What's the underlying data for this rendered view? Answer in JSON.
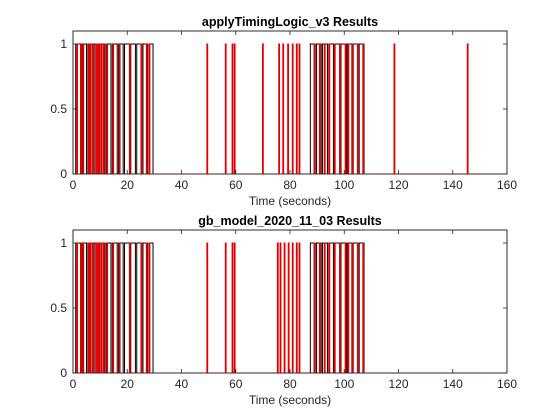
{
  "chart_data": [
    {
      "type": "line",
      "title": "applyTimingLogic_v3 Results",
      "xlabel": "Time (seconds)",
      "ylabel": "",
      "xlim": [
        0,
        160
      ],
      "ylim": [
        0,
        1.1
      ],
      "xticks": [
        0,
        20,
        40,
        60,
        80,
        100,
        120,
        140,
        160
      ],
      "yticks": [
        0,
        0.5,
        1
      ],
      "ytick_labels": [
        "0",
        "0.5",
        "1"
      ],
      "grid": false,
      "legend": false,
      "series": [
        {
          "color": "#000000",
          "style": "pulses",
          "x_end": 152,
          "pulses": [
            [
              1.0,
              2.8
            ],
            [
              3.3,
              5.0
            ],
            [
              5.5,
              7.3
            ],
            [
              7.8,
              9.5
            ],
            [
              10.0,
              11.8
            ],
            [
              12.3,
              14.0
            ],
            [
              14.5,
              16.3
            ],
            [
              16.8,
              18.5
            ],
            [
              19.0,
              20.8
            ],
            [
              21.3,
              23.0
            ],
            [
              23.5,
              25.3
            ],
            [
              25.8,
              27.5
            ],
            [
              28.0,
              29.5
            ],
            [
              87.5,
              89.3
            ],
            [
              89.8,
              91.5
            ],
            [
              92.0,
              93.8
            ],
            [
              94.3,
              96.0
            ],
            [
              96.5,
              98.3
            ],
            [
              98.8,
              100.5
            ],
            [
              101.0,
              102.8
            ],
            [
              103.3,
              105.0
            ],
            [
              105.5,
              107.3
            ]
          ]
        },
        {
          "color": "#e00000",
          "style": "spikes",
          "x_end": 152,
          "spikes": [
            1.5,
            3.0,
            3.8,
            5.8,
            6.4,
            7.2,
            8.5,
            9.2,
            9.8,
            10.6,
            11.4,
            12.6,
            14.8,
            17.2,
            21.0,
            25.2,
            27.2,
            28.2,
            49.5,
            56.3,
            58.8,
            59.6,
            70.0,
            76.0,
            77.5,
            79.3,
            81.0,
            82.5,
            83.5,
            89.0,
            91.0,
            92.8,
            94.5,
            96.5,
            98.5,
            100.5,
            101.5,
            103.0,
            105.0,
            107.0,
            118.5,
            145.5
          ]
        }
      ]
    },
    {
      "type": "line",
      "title": "gb_model_2020_11_03 Results",
      "xlabel": "Time (seconds)",
      "ylabel": "",
      "xlim": [
        0,
        160
      ],
      "ylim": [
        0,
        1.1
      ],
      "xticks": [
        0,
        20,
        40,
        60,
        80,
        100,
        120,
        140,
        160
      ],
      "yticks": [
        0,
        0.5,
        1
      ],
      "ytick_labels": [
        "0",
        "0.5",
        "1"
      ],
      "grid": false,
      "legend": false,
      "series": [
        {
          "color": "#000000",
          "style": "pulses",
          "x_end": 152,
          "pulses": [
            [
              1.0,
              2.8
            ],
            [
              3.3,
              5.0
            ],
            [
              5.5,
              7.3
            ],
            [
              7.8,
              9.5
            ],
            [
              10.0,
              11.8
            ],
            [
              12.3,
              14.0
            ],
            [
              14.5,
              16.3
            ],
            [
              16.8,
              18.5
            ],
            [
              19.0,
              20.8
            ],
            [
              21.3,
              23.0
            ],
            [
              23.5,
              25.3
            ],
            [
              25.8,
              27.5
            ],
            [
              28.0,
              29.5
            ],
            [
              87.5,
              89.3
            ],
            [
              89.8,
              91.5
            ],
            [
              92.0,
              93.8
            ],
            [
              94.3,
              96.0
            ],
            [
              96.5,
              98.3
            ],
            [
              98.8,
              100.5
            ],
            [
              101.0,
              102.8
            ],
            [
              103.3,
              105.0
            ],
            [
              105.5,
              107.3
            ]
          ]
        },
        {
          "color": "#e00000",
          "style": "spikes",
          "x_end": 152,
          "spikes": [
            1.5,
            3.0,
            3.8,
            5.8,
            6.4,
            7.2,
            8.5,
            9.2,
            9.8,
            10.6,
            11.4,
            12.6,
            14.8,
            17.2,
            21.0,
            25.2,
            27.2,
            28.2,
            49.5,
            56.3,
            58.8,
            59.6,
            75.5,
            76.5,
            78.0,
            79.5,
            81.0,
            82.5,
            83.5,
            89.0,
            91.0,
            92.8,
            94.5,
            96.5,
            98.5,
            100.5,
            101.5,
            103.0,
            105.0,
            107.0
          ]
        }
      ]
    }
  ]
}
